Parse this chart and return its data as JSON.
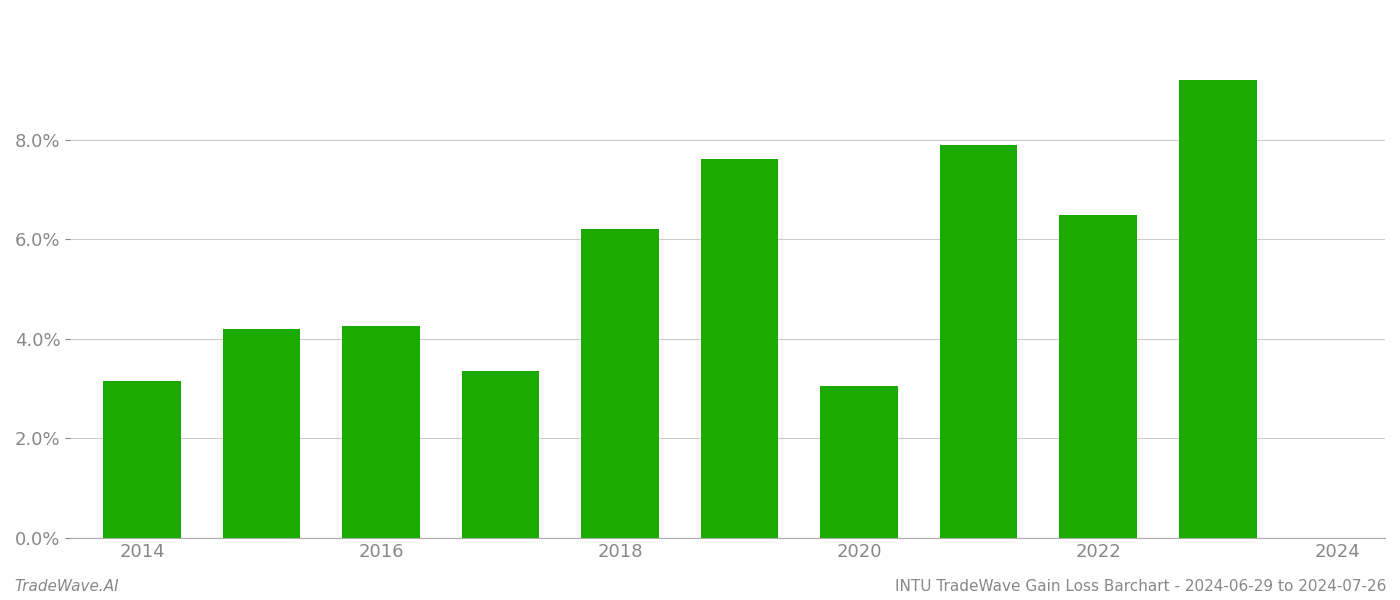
{
  "years": [
    2014,
    2015,
    2016,
    2017,
    2018,
    2019,
    2020,
    2021,
    2022,
    2023
  ],
  "values": [
    0.0315,
    0.042,
    0.0425,
    0.0335,
    0.062,
    0.076,
    0.0305,
    0.079,
    0.0648,
    0.092
  ],
  "bar_color": "#1aaa00",
  "background_color": "#ffffff",
  "ylim": [
    0,
    0.105
  ],
  "yticks": [
    0.0,
    0.02,
    0.04,
    0.06,
    0.08
  ],
  "xtick_positions": [
    2014,
    2016,
    2018,
    2020,
    2022,
    2024
  ],
  "xtick_labels": [
    "2014",
    "2016",
    "2018",
    "2020",
    "2022",
    "2024"
  ],
  "xlim": [
    2013.4,
    2024.4
  ],
  "grid_color": "#cccccc",
  "tick_color": "#888888",
  "spine_color": "#aaaaaa",
  "footer_left": "TradeWave.AI",
  "footer_right": "INTU TradeWave Gain Loss Barchart - 2024-06-29 to 2024-07-26",
  "footer_fontsize": 11,
  "tick_label_fontsize": 13,
  "bar_width": 0.65
}
